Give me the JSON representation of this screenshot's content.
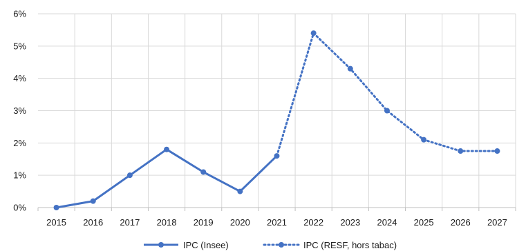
{
  "chart_data": {
    "type": "line",
    "categories": [
      "2015",
      "2016",
      "2017",
      "2018",
      "2019",
      "2020",
      "2021",
      "2022",
      "2023",
      "2024",
      "2025",
      "2026",
      "2027"
    ],
    "ylim": [
      0,
      6
    ],
    "yticks": [
      "0%",
      "1%",
      "2%",
      "3%",
      "4%",
      "5%",
      "6%"
    ],
    "grid": "vertical and horizontal",
    "legend_position": "bottom",
    "color": "#4472C4",
    "series": [
      {
        "name": "IPC (Insee)",
        "style": "solid",
        "points": [
          {
            "x": 2015,
            "y": 0.0
          },
          {
            "x": 2016,
            "y": 0.2
          },
          {
            "x": 2017,
            "y": 1.0
          },
          {
            "x": 2018,
            "y": 1.8
          },
          {
            "x": 2019,
            "y": 1.1
          },
          {
            "x": 2020,
            "y": 0.5
          },
          {
            "x": 2021,
            "y": 1.6
          }
        ]
      },
      {
        "name": "IPC (RESF, hors tabac)",
        "style": "dotted",
        "points": [
          {
            "x": 2021,
            "y": 1.6
          },
          {
            "x": 2022,
            "y": 5.4
          },
          {
            "x": 2023,
            "y": 4.3
          },
          {
            "x": 2024,
            "y": 3.0
          },
          {
            "x": 2025,
            "y": 2.1
          },
          {
            "x": 2026,
            "y": 1.75
          },
          {
            "x": 2027,
            "y": 1.75
          }
        ]
      }
    ]
  }
}
